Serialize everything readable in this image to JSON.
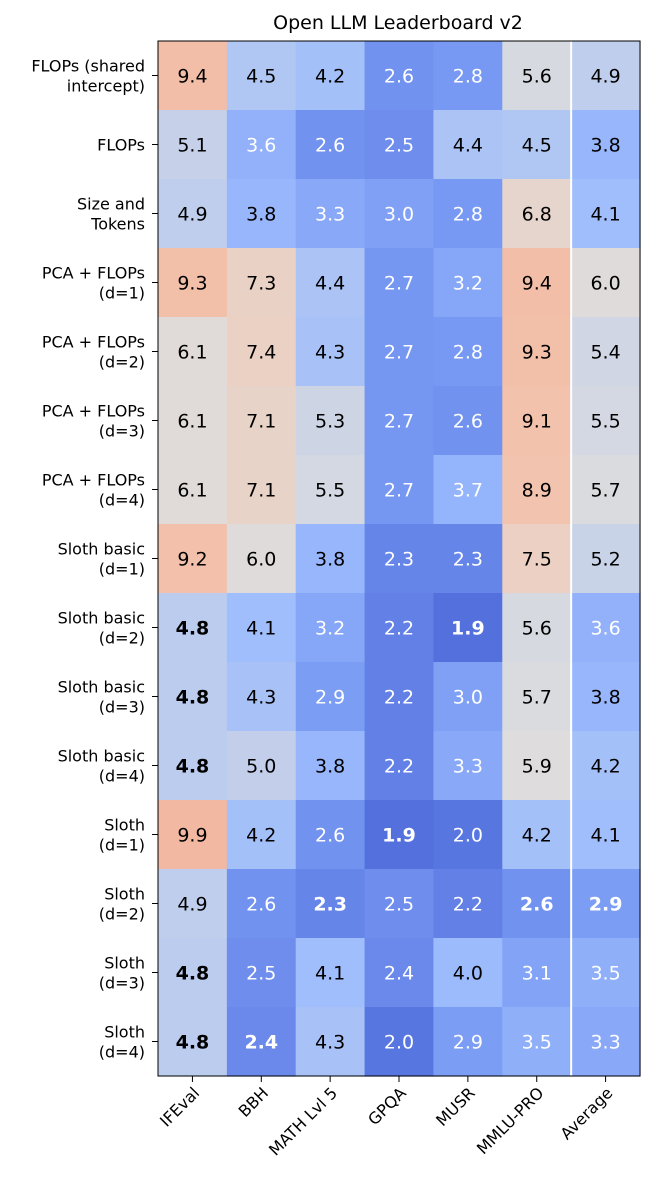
{
  "chart_data": {
    "type": "heatmap",
    "title": "Open LLM Leaderboard v2",
    "columns": [
      "IFEval",
      "BBH",
      "MATH Lvl 5",
      "GPQA",
      "MUSR",
      "MMLU-PRO",
      "Average"
    ],
    "rows": [
      {
        "label": [
          "FLOPs (shared",
          "intercept)"
        ],
        "values": [
          "9.4",
          "4.5",
          "4.2",
          "2.6",
          "2.8",
          "5.6",
          "4.9"
        ],
        "bold": []
      },
      {
        "label": [
          "FLOPs"
        ],
        "values": [
          "5.1",
          "3.6",
          "2.6",
          "2.5",
          "4.4",
          "4.5",
          "3.8"
        ],
        "bold": []
      },
      {
        "label": [
          "Size and",
          "Tokens"
        ],
        "values": [
          "4.9",
          "3.8",
          "3.3",
          "3.0",
          "2.8",
          "6.8",
          "4.1"
        ],
        "bold": []
      },
      {
        "label": [
          "PCA + FLOPs",
          "(d=1)"
        ],
        "values": [
          "9.3",
          "7.3",
          "4.4",
          "2.7",
          "3.2",
          "9.4",
          "6.0"
        ],
        "bold": []
      },
      {
        "label": [
          "PCA + FLOPs",
          "(d=2)"
        ],
        "values": [
          "6.1",
          "7.4",
          "4.3",
          "2.7",
          "2.8",
          "9.3",
          "5.4"
        ],
        "bold": []
      },
      {
        "label": [
          "PCA + FLOPs",
          "(d=3)"
        ],
        "values": [
          "6.1",
          "7.1",
          "5.3",
          "2.7",
          "2.6",
          "9.1",
          "5.5"
        ],
        "bold": []
      },
      {
        "label": [
          "PCA + FLOPs",
          "(d=4)"
        ],
        "values": [
          "6.1",
          "7.1",
          "5.5",
          "2.7",
          "3.7",
          "8.9",
          "5.7"
        ],
        "bold": []
      },
      {
        "label": [
          "Sloth basic",
          "(d=1)"
        ],
        "values": [
          "9.2",
          "6.0",
          "3.8",
          "2.3",
          "2.3",
          "7.5",
          "5.2"
        ],
        "bold": []
      },
      {
        "label": [
          "Sloth basic",
          "(d=2)"
        ],
        "values": [
          "4.8",
          "4.1",
          "3.2",
          "2.2",
          "1.9",
          "5.6",
          "3.6"
        ],
        "bold": [
          0,
          4
        ]
      },
      {
        "label": [
          "Sloth basic",
          "(d=3)"
        ],
        "values": [
          "4.8",
          "4.3",
          "2.9",
          "2.2",
          "3.0",
          "5.7",
          "3.8"
        ],
        "bold": [
          0
        ]
      },
      {
        "label": [
          "Sloth basic",
          "(d=4)"
        ],
        "values": [
          "4.8",
          "5.0",
          "3.8",
          "2.2",
          "3.3",
          "5.9",
          "4.2"
        ],
        "bold": [
          0
        ]
      },
      {
        "label": [
          "Sloth",
          "(d=1)"
        ],
        "values": [
          "9.9",
          "4.2",
          "2.6",
          "1.9",
          "2.0",
          "4.2",
          "4.1"
        ],
        "bold": [
          3
        ]
      },
      {
        "label": [
          "Sloth",
          "(d=2)"
        ],
        "values": [
          "4.9",
          "2.6",
          "2.3",
          "2.5",
          "2.2",
          "2.6",
          "2.9"
        ],
        "bold": [
          2,
          5,
          6
        ]
      },
      {
        "label": [
          "Sloth",
          "(d=3)"
        ],
        "values": [
          "4.8",
          "2.5",
          "4.1",
          "2.4",
          "4.0",
          "3.1",
          "3.5"
        ],
        "bold": [
          0
        ]
      },
      {
        "label": [
          "Sloth",
          "(d=4)"
        ],
        "values": [
          "4.8",
          "2.4",
          "4.3",
          "2.0",
          "2.9",
          "3.5",
          "3.3"
        ],
        "bold": [
          0,
          1
        ]
      }
    ],
    "colormap": "coolwarm",
    "color_range": [
      1.9,
      9.9
    ],
    "separator_before_column": "Average"
  }
}
